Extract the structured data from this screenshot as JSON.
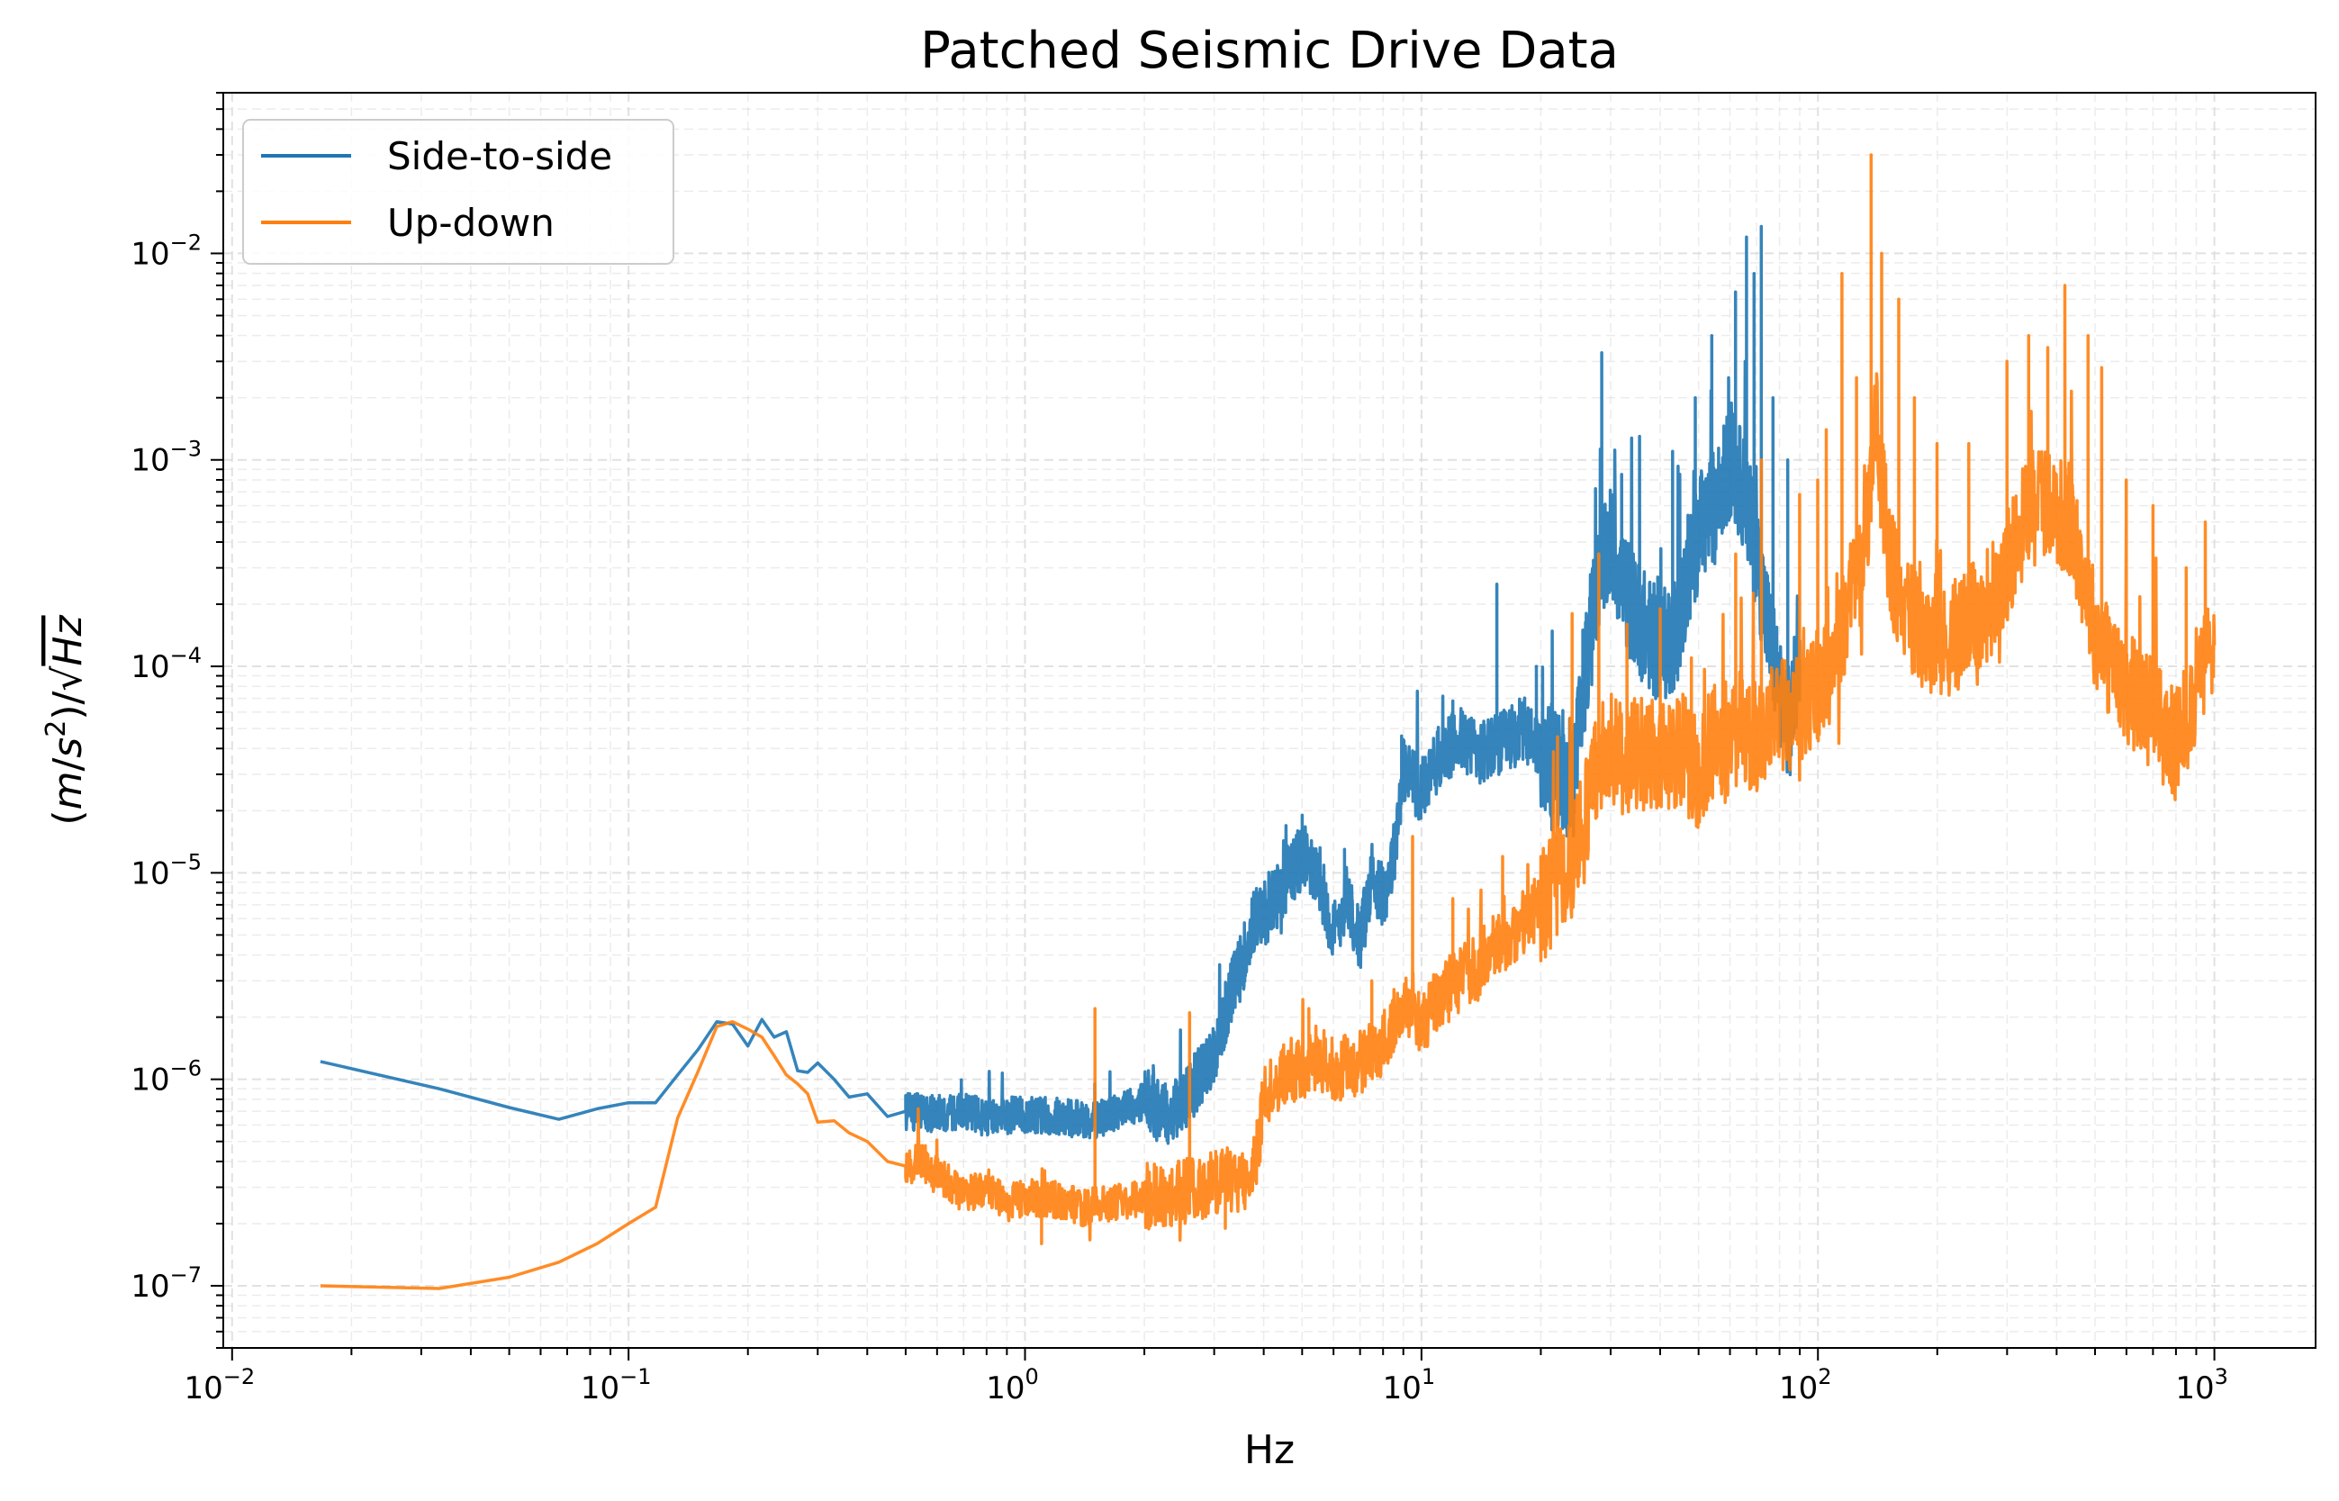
{
  "chart_data": {
    "type": "line",
    "title": "Patched Seismic Drive Data",
    "xlabel": "Hz",
    "ylabel_parts": {
      "open": "(",
      "m": "m",
      "slash": "/",
      "s": "s",
      "sq": "2",
      "close": ")/",
      "sqrt": "√",
      "hz": "Hz"
    },
    "xscale": "log",
    "yscale": "log",
    "xlim": [
      0.0095,
      1800
    ],
    "ylim": [
      5e-08,
      0.06
    ],
    "grid": true,
    "legend_position": "top-left",
    "x_tick_labels": [
      {
        "base": "10",
        "exp": "−2",
        "value": 0.01
      },
      {
        "base": "10",
        "exp": "−1",
        "value": 0.1
      },
      {
        "base": "10",
        "exp": "0",
        "value": 1
      },
      {
        "base": "10",
        "exp": "1",
        "value": 10
      },
      {
        "base": "10",
        "exp": "2",
        "value": 100
      },
      {
        "base": "10",
        "exp": "3",
        "value": 1000
      }
    ],
    "y_tick_labels": [
      {
        "base": "10",
        "exp": "−7",
        "value": 1e-07
      },
      {
        "base": "10",
        "exp": "−6",
        "value": 1e-06
      },
      {
        "base": "10",
        "exp": "−5",
        "value": 1e-05
      },
      {
        "base": "10",
        "exp": "−4",
        "value": 0.0001
      },
      {
        "base": "10",
        "exp": "−3",
        "value": 0.001
      },
      {
        "base": "10",
        "exp": "−2",
        "value": 0.01
      }
    ],
    "series": [
      {
        "name": "Side-to-side",
        "color": "#1f77b4",
        "points": [
          [
            0.0167,
            1.22e-06
          ],
          [
            0.0333,
            9e-07
          ],
          [
            0.05,
            7.3e-07
          ],
          [
            0.0667,
            6.4e-07
          ],
          [
            0.0833,
            7.2e-07
          ],
          [
            0.1,
            7.7e-07
          ],
          [
            0.117,
            7.7e-07
          ],
          [
            0.133,
            1.05e-06
          ],
          [
            0.15,
            1.4e-06
          ],
          [
            0.167,
            1.9e-06
          ],
          [
            0.183,
            1.85e-06
          ],
          [
            0.2,
            1.45e-06
          ],
          [
            0.217,
            1.95e-06
          ],
          [
            0.233,
            1.6e-06
          ],
          [
            0.25,
            1.7e-06
          ],
          [
            0.267,
            1.1e-06
          ],
          [
            0.283,
            1.08e-06
          ],
          [
            0.3,
            1.2e-06
          ],
          [
            0.33,
            1e-06
          ],
          [
            0.36,
            8.2e-07
          ],
          [
            0.4,
            8.5e-07
          ],
          [
            0.45,
            6.6e-07
          ],
          [
            0.5,
            7e-07
          ],
          [
            0.6,
            6.8e-07
          ],
          [
            0.7,
            7e-07
          ],
          [
            0.8,
            6.5e-07
          ],
          [
            1.0,
            6.8e-07
          ],
          [
            1.2,
            6.6e-07
          ],
          [
            1.5,
            6.3e-07
          ],
          [
            1.8,
            7.2e-07
          ],
          [
            2.0,
            7.8e-07
          ],
          [
            2.3,
            6.8e-07
          ],
          [
            2.6,
            8.5e-07
          ],
          [
            2.9,
            1.2e-06
          ],
          [
            3.1,
            1.6e-06
          ],
          [
            3.3,
            2.6e-06
          ],
          [
            3.5,
            3.5e-06
          ],
          [
            3.8,
            6e-06
          ],
          [
            4.1,
            6.5e-06
          ],
          [
            4.5,
            9e-06
          ],
          [
            5.0,
            1.2e-05
          ],
          [
            5.5,
            1e-05
          ],
          [
            6.0,
            5e-06
          ],
          [
            6.5,
            8e-06
          ],
          [
            7.0,
            4.5e-06
          ],
          [
            7.5,
            1e-05
          ],
          [
            8.0,
            7.5e-06
          ],
          [
            8.5,
            1.2e-05
          ],
          [
            9.0,
            3.2e-05
          ],
          [
            10.0,
            2.5e-05
          ],
          [
            11.0,
            3.5e-05
          ],
          [
            12.5,
            4.5e-05
          ],
          [
            14.0,
            3.8e-05
          ],
          [
            16.0,
            4.2e-05
          ],
          [
            18.0,
            5e-05
          ],
          [
            20.0,
            4e-05
          ],
          [
            22.0,
            3.2e-05
          ],
          [
            24.0,
            2.4e-05
          ],
          [
            26.0,
            0.000105
          ],
          [
            28.0,
            0.00025
          ],
          [
            30.0,
            0.0004
          ],
          [
            33.0,
            0.00022
          ],
          [
            36.0,
            0.00016
          ],
          [
            40.0,
            0.00012
          ],
          [
            44.0,
            0.00015
          ],
          [
            50.0,
            0.00045
          ],
          [
            55.0,
            0.0006
          ],
          [
            60.0,
            0.001
          ],
          [
            65.0,
            0.0007
          ],
          [
            70.0,
            0.00035
          ],
          [
            75.0,
            0.00015
          ],
          [
            80.0,
            8e-05
          ],
          [
            85.0,
            5e-05
          ],
          [
            90.0,
            0.00012
          ]
        ],
        "spikes": [
          [
            1.5,
            9.5e-07
          ],
          [
            2.1,
            9.8e-07
          ],
          [
            3.6,
            4.2e-06
          ],
          [
            5.0,
            1.9e-05
          ],
          [
            6.4,
            1.3e-05
          ],
          [
            8.9,
            4.6e-05
          ],
          [
            12.0,
            6.8e-05
          ],
          [
            15.5,
            0.00025
          ],
          [
            19.5,
            0.0001
          ],
          [
            25.5,
            0.00015
          ],
          [
            28.5,
            0.0033
          ],
          [
            32.0,
            0.00085
          ],
          [
            35.5,
            0.0013
          ],
          [
            43.0,
            0.0011
          ],
          [
            49.0,
            0.002
          ],
          [
            54.0,
            0.004
          ],
          [
            59.5,
            0.0025
          ],
          [
            62.0,
            0.0065
          ],
          [
            66.0,
            0.012
          ],
          [
            69.0,
            0.008
          ],
          [
            72.0,
            0.0135
          ],
          [
            77.0,
            0.002
          ],
          [
            84.0,
            0.001
          ]
        ]
      },
      {
        "name": "Up-down",
        "color": "#ff7f0e",
        "points": [
          [
            0.0167,
            1e-07
          ],
          [
            0.0333,
            9.7e-08
          ],
          [
            0.05,
            1.1e-07
          ],
          [
            0.0667,
            1.3e-07
          ],
          [
            0.0833,
            1.6e-07
          ],
          [
            0.1,
            2e-07
          ],
          [
            0.117,
            2.4e-07
          ],
          [
            0.133,
            6.5e-07
          ],
          [
            0.15,
            1.1e-06
          ],
          [
            0.167,
            1.8e-06
          ],
          [
            0.183,
            1.9e-06
          ],
          [
            0.2,
            1.75e-06
          ],
          [
            0.217,
            1.6e-06
          ],
          [
            0.233,
            1.3e-06
          ],
          [
            0.25,
            1.05e-06
          ],
          [
            0.267,
            9.5e-07
          ],
          [
            0.283,
            8.5e-07
          ],
          [
            0.3,
            6.2e-07
          ],
          [
            0.33,
            6.3e-07
          ],
          [
            0.36,
            5.5e-07
          ],
          [
            0.4,
            5e-07
          ],
          [
            0.45,
            4e-07
          ],
          [
            0.5,
            3.8e-07
          ],
          [
            0.55,
            4e-07
          ],
          [
            0.6,
            3.5e-07
          ],
          [
            0.7,
            2.7e-07
          ],
          [
            0.8,
            3e-07
          ],
          [
            0.9,
            2.5e-07
          ],
          [
            1.0,
            2.7e-07
          ],
          [
            1.2,
            2.6e-07
          ],
          [
            1.4,
            2.4e-07
          ],
          [
            1.6,
            2.5e-07
          ],
          [
            1.8,
            2.6e-07
          ],
          [
            2.0,
            2.7e-07
          ],
          [
            2.3,
            2.8e-07
          ],
          [
            2.6,
            2.9e-07
          ],
          [
            3.0,
            3.2e-07
          ],
          [
            3.5,
            3.3e-07
          ],
          [
            3.8,
            3.6e-07
          ],
          [
            4.0,
            8e-07
          ],
          [
            4.5,
            1.1e-06
          ],
          [
            5.0,
            1.1e-06
          ],
          [
            5.5,
            1.3e-06
          ],
          [
            6.0,
            1.1e-06
          ],
          [
            7.0,
            1.2e-06
          ],
          [
            8.0,
            1.5e-06
          ],
          [
            9.0,
            2.5e-06
          ],
          [
            10.0,
            1.8e-06
          ],
          [
            11.0,
            2.5e-06
          ],
          [
            12.5,
            3e-06
          ],
          [
            14.0,
            3.5e-06
          ],
          [
            15.0,
            4.5e-06
          ],
          [
            17.0,
            5e-06
          ],
          [
            19.0,
            6.5e-06
          ],
          [
            21.0,
            7.5e-06
          ],
          [
            23.0,
            9.5e-06
          ],
          [
            25.0,
            1.4e-05
          ],
          [
            27.0,
            2.7e-05
          ],
          [
            29.0,
            4.5e-05
          ],
          [
            32.0,
            3.5e-05
          ],
          [
            36.0,
            3.8e-05
          ],
          [
            40.0,
            3.5e-05
          ],
          [
            45.0,
            4e-05
          ],
          [
            50.0,
            3e-05
          ],
          [
            55.0,
            4.5e-05
          ],
          [
            60.0,
            4e-05
          ],
          [
            65.0,
            5e-05
          ],
          [
            70.0,
            4.5e-05
          ],
          [
            80.0,
            6e-05
          ],
          [
            90.0,
            6e-05
          ],
          [
            100.0,
            8e-05
          ],
          [
            110.0,
            0.0001
          ],
          [
            120.0,
            0.0002
          ],
          [
            130.0,
            0.0003
          ],
          [
            140.0,
            0.0015
          ],
          [
            150.0,
            0.0004
          ],
          [
            160.0,
            0.0002
          ],
          [
            180.0,
            0.00015
          ],
          [
            200.0,
            0.00012
          ],
          [
            230.0,
            0.00015
          ],
          [
            260.0,
            0.00018
          ],
          [
            300.0,
            0.0003
          ],
          [
            350.0,
            0.0007
          ],
          [
            400.0,
            0.0006
          ],
          [
            450.0,
            0.0004
          ],
          [
            500.0,
            0.00015
          ],
          [
            550.0,
            0.0001
          ],
          [
            600.0,
            8e-05
          ],
          [
            700.0,
            6e-05
          ],
          [
            800.0,
            4e-05
          ],
          [
            900.0,
            8e-05
          ],
          [
            1000.0,
            0.00013
          ]
        ],
        "spikes": [
          [
            1.1,
            1.6e-07
          ],
          [
            1.5,
            2.2e-06
          ],
          [
            2.6,
            2.1e-06
          ],
          [
            3.2,
            1.9e-07
          ],
          [
            5.2,
            2.2e-06
          ],
          [
            7.5,
            3e-06
          ],
          [
            9.5,
            1.5e-05
          ],
          [
            12.0,
            7.5e-06
          ],
          [
            16.0,
            1.2e-05
          ],
          [
            20.0,
            1.2e-05
          ],
          [
            24.0,
            0.00018
          ],
          [
            28.0,
            0.00035
          ],
          [
            33.0,
            0.00016
          ],
          [
            40.0,
            0.00019
          ],
          [
            48.0,
            0.00011
          ],
          [
            62.0,
            0.00035
          ],
          [
            72.0,
            0.001
          ],
          [
            90.0,
            0.00068
          ],
          [
            100.0,
            0.0008
          ],
          [
            105.0,
            0.0014
          ],
          [
            115.0,
            0.008
          ],
          [
            125.0,
            0.0025
          ],
          [
            136.0,
            0.03
          ],
          [
            145.0,
            0.01
          ],
          [
            160.0,
            0.006
          ],
          [
            175.0,
            0.002
          ],
          [
            200.0,
            0.0012
          ],
          [
            240.0,
            0.0012
          ],
          [
            300.0,
            0.003
          ],
          [
            340.0,
            0.004
          ],
          [
            380.0,
            0.0035
          ],
          [
            420.0,
            0.007
          ],
          [
            480.0,
            0.004
          ],
          [
            520.0,
            0.0028
          ],
          [
            600.0,
            0.0008
          ],
          [
            700.0,
            0.0006
          ],
          [
            850.0,
            0.0003
          ],
          [
            950.0,
            0.0005
          ]
        ]
      }
    ]
  }
}
